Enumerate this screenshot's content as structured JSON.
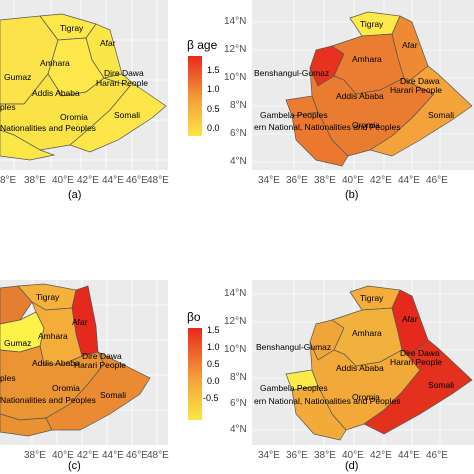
{
  "panels": [
    {
      "caption": "(a)",
      "x_ticks": [
        "8°E",
        "38°E",
        "40°E",
        "42°E",
        "44°E",
        "46°E",
        "48°E"
      ],
      "y_ticks": [],
      "labels": [
        "Tigray",
        "Afar",
        "Amhara",
        "Gumaz",
        "Dire Dawa",
        "Harari People",
        "Addis Ababa",
        "Oromia",
        "Somali",
        "ples",
        "Nationalities and Peoples"
      ],
      "legend": {
        "title": "β age",
        "ticks": [
          "1.5",
          "1.0",
          "0.5",
          "0.0"
        ],
        "colors": [
          "#e8291c",
          "#f4a13a",
          "#fbe744"
        ]
      }
    },
    {
      "caption": "(b)",
      "x_ticks": [
        "34°E",
        "36°E",
        "38°E",
        "40°E",
        "42°E",
        "44°E",
        "46°E"
      ],
      "y_ticks": [
        "14°N",
        "12°N",
        "10°N",
        "8°N",
        "6°N",
        "4°N"
      ],
      "labels": [
        "Tigray",
        "Afar",
        "Amhara",
        "Benshangul-Gumaz",
        "Dire Dawa",
        "Harari People",
        "Addis Ababa",
        "Gambela Peoples",
        "Oromia",
        "Somali",
        "ern National, Nationalities and Peoples"
      ]
    },
    {
      "caption": "(c)",
      "x_ticks": [
        "38°E",
        "40°E",
        "42°E",
        "44°E",
        "46°E",
        "48°E"
      ],
      "y_ticks": [],
      "labels": [
        "Tigray",
        "Afar",
        "Amhara",
        "Gumaz",
        "Dire Dawa",
        "Harari People",
        "Addis Ababa",
        "Oromia",
        "Somali",
        "ples",
        "Nationalities and Peoples"
      ],
      "legend": {
        "title": "βo",
        "ticks": [
          "1.5",
          "1.0",
          "0.5",
          "0.0",
          "-0.5"
        ],
        "colors": [
          "#e8291c",
          "#f4a13a",
          "#fbe744"
        ]
      }
    },
    {
      "caption": "(d)",
      "x_ticks": [
        "34°E",
        "36°E",
        "38°E",
        "40°E",
        "42°E",
        "44°E",
        "46°E"
      ],
      "y_ticks": [
        "14°N",
        "12°N",
        "10°N",
        "8°N",
        "6°N",
        "4°N"
      ],
      "labels": [
        "Tigray",
        "Afar",
        "Amhara",
        "Benshangul-Gumaz",
        "Dire Dawa",
        "Harari People",
        "Addis Ababa",
        "Gambela Peoples",
        "Oromia",
        "Somali",
        "ern National, Nationalities and Peoples"
      ]
    }
  ]
}
